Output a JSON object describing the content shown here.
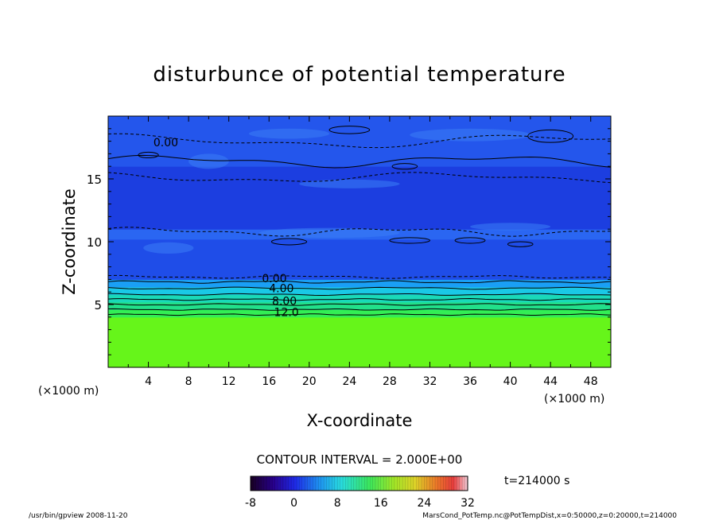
{
  "chart_data": {
    "type": "heatmap",
    "title": "disturbunce of potential temperature",
    "xlabel": "X-coordinate",
    "ylabel": "Z-coordinate",
    "x_unit": "(×1000 m)",
    "xlim": [
      0,
      50
    ],
    "ylim": [
      0,
      20
    ],
    "x_ticks": [
      4,
      8,
      12,
      16,
      20,
      24,
      28,
      32,
      36,
      40,
      44,
      48
    ],
    "y_ticks": [
      5,
      10,
      15
    ],
    "contour_interval_label": "CONTOUR INTERVAL = 2.000E+00",
    "contour_labels": [
      {
        "text": "0.00",
        "x": 4.5,
        "z": 17.9
      },
      {
        "text": "0.00",
        "x": 15.3,
        "z": 7.1
      },
      {
        "text": "4.00",
        "x": 16.0,
        "z": 6.3
      },
      {
        "text": "8.00",
        "x": 16.3,
        "z": 5.3
      },
      {
        "text": "12.0",
        "x": 16.5,
        "z": 4.4
      }
    ],
    "colorbar": {
      "min": -8,
      "max": 32,
      "ticks": [
        "-8",
        "0",
        "8",
        "16",
        "24",
        "32"
      ]
    },
    "layers": [
      {
        "z_from": 0,
        "z_to": 4.0,
        "value": 18,
        "color": "#66f51a"
      },
      {
        "z_from": 4.0,
        "z_to": 4.6,
        "value": 14,
        "color": "#33ee55"
      },
      {
        "z_from": 4.6,
        "z_to": 5.2,
        "value": 12,
        "color": "#22e08a"
      },
      {
        "z_from": 5.2,
        "z_to": 5.8,
        "value": 9,
        "color": "#1ad9b8"
      },
      {
        "z_from": 5.8,
        "z_to": 6.4,
        "value": 6,
        "color": "#1ac8e6"
      },
      {
        "z_from": 6.4,
        "z_to": 7.0,
        "value": 3,
        "color": "#1a9ff5"
      },
      {
        "z_from": 7.0,
        "z_to": 10.2,
        "value": -1,
        "color": "#1f4de8"
      },
      {
        "z_from": 10.2,
        "z_to": 11.0,
        "value": 0,
        "color": "#2a66f2"
      },
      {
        "z_from": 11.0,
        "z_to": 16.0,
        "value": -2,
        "color": "#1c3ee0"
      },
      {
        "z_from": 16.0,
        "z_to": 20.0,
        "value": 0,
        "color": "#2456ec"
      }
    ],
    "time_label": "t=214000 s"
  },
  "footer": {
    "left": "/usr/bin/gpview   2008-11-20",
    "right": "MarsCond_PotTemp.nc@PotTempDist,x=0:50000,z=0:20000,t=214000"
  }
}
